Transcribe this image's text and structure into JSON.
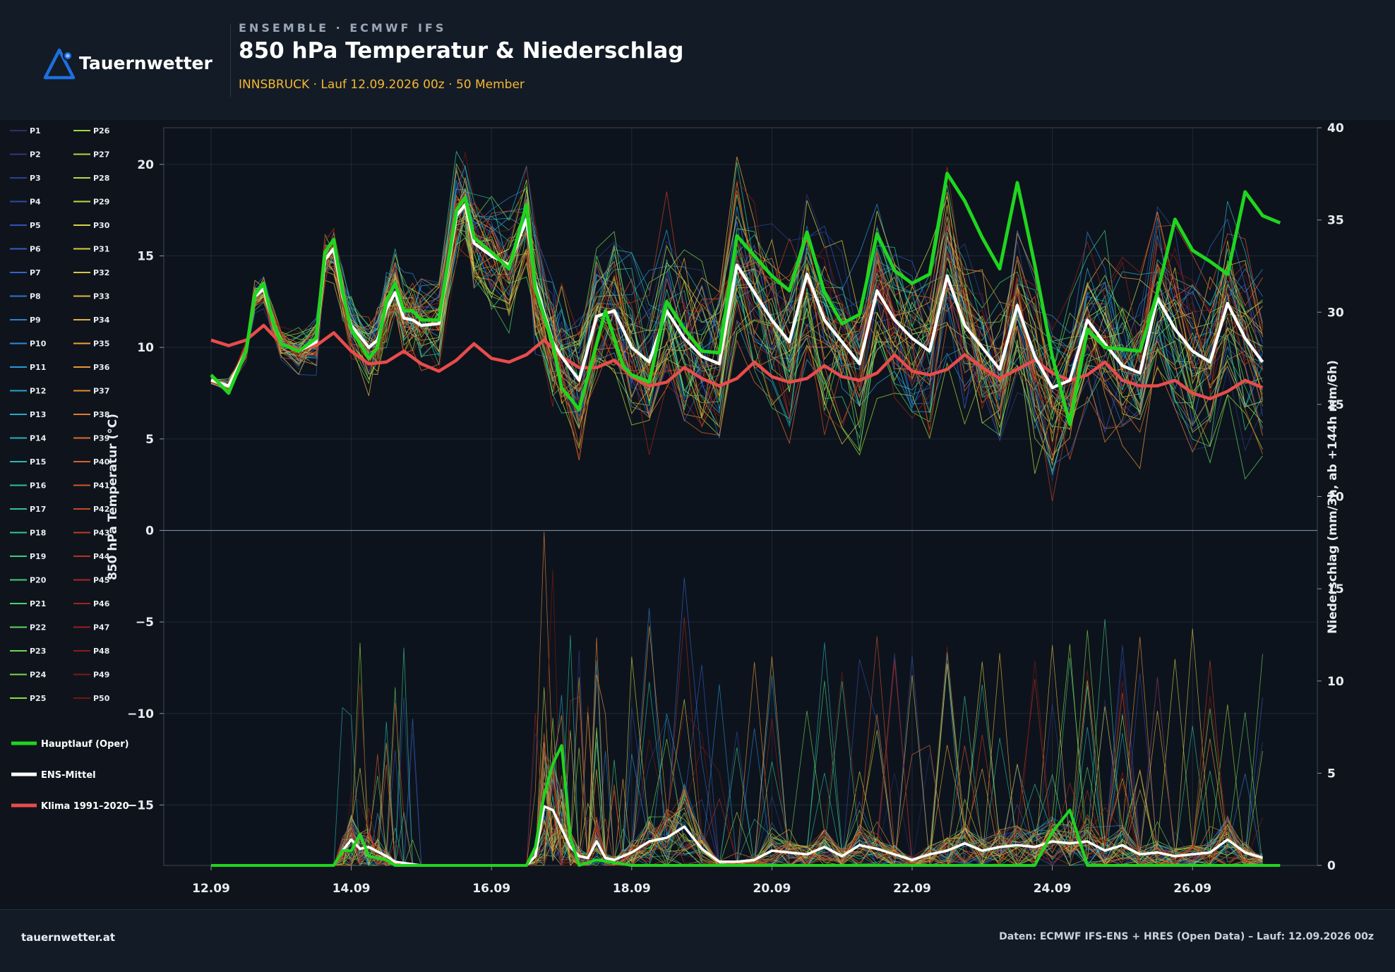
{
  "header": {
    "brand": "Tauernwetter",
    "kicker": "ENSEMBLE · ECMWF IFS",
    "title": "850 hPa Temperatur & Niederschlag",
    "subtitle": "INNSBRUCK · Lauf 12.09.2026 00z · 50 Member"
  },
  "footer": {
    "site": "tauernwetter.at",
    "source": "Daten: ECMWF IFS-ENS + HRES (Open Data) – Lauf: 12.09.2026 00z"
  },
  "colors": {
    "background": "#0f141c",
    "panel": "#131b26",
    "accent_brand": "#1e6fe0",
    "subtitle": "#f5b731",
    "oper": "#1fd61f",
    "mean": "#ffffff",
    "climate": "#e84c4c"
  },
  "icons": {
    "logo": "mountain-triangle-icon"
  },
  "chart_data": {
    "type": "line",
    "x_unit": "date",
    "x_range": [
      "2026-09-12",
      "2026-09-27"
    ],
    "x_ticks": [
      "12.09",
      "14.09",
      "16.09",
      "18.09",
      "20.09",
      "22.09",
      "24.09",
      "26.09"
    ],
    "x_tick_dates": [
      "2026-09-12",
      "2026-09-14",
      "2026-09-16",
      "2026-09-18",
      "2026-09-20",
      "2026-09-22",
      "2026-09-24",
      "2026-09-26"
    ],
    "ylabel": "850 hPa Temperatur (°C)",
    "ylim": [
      -18.3,
      22.0
    ],
    "y_ticks": [
      20,
      15,
      10,
      5,
      0,
      -5,
      -10,
      -15
    ],
    "y_tick_labels": [
      "20",
      "15",
      "10",
      "5",
      "0",
      "−5",
      "−10",
      "−15"
    ],
    "y2label": "Niederschlag (mm/3h, ab +144h mm/6h)",
    "y2lim": [
      0,
      40
    ],
    "y2_ticks": [
      0,
      5,
      10,
      15,
      20,
      25,
      30,
      35,
      40
    ],
    "y2_tick_labels": [
      "0",
      "5",
      "10",
      "15",
      "20",
      "25",
      "30",
      "35",
      "40"
    ],
    "grid": true,
    "legend_position": "left",
    "ensemble_members": [
      "P1",
      "P2",
      "P3",
      "P4",
      "P5",
      "P6",
      "P7",
      "P8",
      "P9",
      "P10",
      "P11",
      "P12",
      "P13",
      "P14",
      "P15",
      "P16",
      "P17",
      "P18",
      "P19",
      "P20",
      "P21",
      "P22",
      "P23",
      "P24",
      "P25",
      "P26",
      "P27",
      "P28",
      "P29",
      "P30",
      "P31",
      "P32",
      "P33",
      "P34",
      "P35",
      "P36",
      "P37",
      "P38",
      "P39",
      "P40",
      "P41",
      "P42",
      "P43",
      "P44",
      "P45",
      "P46",
      "P47",
      "P48",
      "P49",
      "P50"
    ],
    "series": [
      {
        "name": "Hauptlauf (Oper)",
        "temperature": [
          [
            0,
            8.5
          ],
          [
            0.25,
            7.5
          ],
          [
            0.5,
            9.8
          ],
          [
            0.625,
            12.9
          ],
          [
            0.75,
            13.5
          ],
          [
            0.875,
            11.5
          ],
          [
            1,
            10.2
          ],
          [
            1.25,
            9.8
          ],
          [
            1.5,
            10.5
          ],
          [
            1.625,
            15.2
          ],
          [
            1.75,
            15.9
          ],
          [
            1.875,
            13.0
          ],
          [
            2,
            11.0
          ],
          [
            2.25,
            9.4
          ],
          [
            2.375,
            10.0
          ],
          [
            2.5,
            12.5
          ],
          [
            2.625,
            13.5
          ],
          [
            2.75,
            12.0
          ],
          [
            2.875,
            12.0
          ],
          [
            3,
            11.5
          ],
          [
            3.25,
            11.5
          ],
          [
            3.5,
            17.5
          ],
          [
            3.625,
            18.2
          ],
          [
            3.75,
            16.0
          ],
          [
            4,
            15.2
          ],
          [
            4.25,
            14.3
          ],
          [
            4.5,
            17.8
          ],
          [
            4.625,
            13.2
          ],
          [
            4.875,
            10.2
          ],
          [
            5,
            7.8
          ],
          [
            5.25,
            6.6
          ],
          [
            5.5,
            10.2
          ],
          [
            5.625,
            12.0
          ],
          [
            5.75,
            10.5
          ],
          [
            5.875,
            9.0
          ],
          [
            6,
            8.5
          ],
          [
            6.25,
            8.1
          ],
          [
            6.5,
            12.5
          ],
          [
            6.75,
            11.0
          ],
          [
            7,
            9.8
          ],
          [
            7.25,
            9.7
          ],
          [
            7.5,
            16.1
          ],
          [
            7.75,
            15.0
          ],
          [
            8,
            13.9
          ],
          [
            8.25,
            13.1
          ],
          [
            8.5,
            16.3
          ],
          [
            8.75,
            13.0
          ],
          [
            9,
            11.3
          ],
          [
            9.25,
            11.8
          ],
          [
            9.5,
            16.2
          ],
          [
            9.75,
            14.2
          ],
          [
            10,
            13.5
          ],
          [
            10.25,
            14.0
          ],
          [
            10.5,
            19.5
          ],
          [
            10.75,
            18.0
          ],
          [
            11,
            16.0
          ],
          [
            11.25,
            14.3
          ],
          [
            11.5,
            19.0
          ],
          [
            11.75,
            14.5
          ],
          [
            12,
            9.5
          ],
          [
            12.25,
            5.8
          ],
          [
            12.5,
            11.0
          ],
          [
            12.75,
            10.0
          ],
          [
            13,
            9.9
          ],
          [
            13.25,
            9.8
          ],
          [
            13.5,
            13.0
          ],
          [
            13.75,
            17.0
          ],
          [
            14,
            15.3
          ],
          [
            14.25,
            14.7
          ],
          [
            14.5,
            14.0
          ],
          [
            14.75,
            18.5
          ],
          [
            15,
            17.2
          ],
          [
            15.25,
            16.8
          ]
        ],
        "precip": [
          [
            0,
            0
          ],
          [
            1.75,
            0
          ],
          [
            1.875,
            0.8
          ],
          [
            2,
            0.8
          ],
          [
            2.125,
            1.7
          ],
          [
            2.25,
            0.5
          ],
          [
            2.5,
            0.3
          ],
          [
            2.625,
            0
          ],
          [
            3,
            0
          ],
          [
            4.5,
            0
          ],
          [
            4.625,
            1.0
          ],
          [
            4.75,
            3.8
          ],
          [
            4.875,
            5.5
          ],
          [
            5,
            6.5
          ],
          [
            5.125,
            1.5
          ],
          [
            5.25,
            0
          ],
          [
            5.5,
            0.3
          ],
          [
            6,
            0
          ],
          [
            7,
            0
          ],
          [
            7.5,
            0
          ],
          [
            8,
            0
          ],
          [
            9,
            0
          ],
          [
            10,
            0
          ],
          [
            11,
            0
          ],
          [
            11.75,
            0
          ],
          [
            12,
            1.8
          ],
          [
            12.25,
            3.0
          ],
          [
            12.5,
            0
          ],
          [
            13,
            0
          ],
          [
            14,
            0
          ],
          [
            15,
            0
          ],
          [
            15.25,
            0
          ]
        ]
      },
      {
        "name": "ENS-Mittel",
        "temperature": [
          [
            0,
            8.2
          ],
          [
            0.25,
            7.9
          ],
          [
            0.5,
            9.8
          ],
          [
            0.625,
            12.8
          ],
          [
            0.75,
            13.2
          ],
          [
            0.875,
            11.5
          ],
          [
            1,
            10.2
          ],
          [
            1.25,
            9.8
          ],
          [
            1.5,
            10.3
          ],
          [
            1.625,
            14.8
          ],
          [
            1.75,
            15.4
          ],
          [
            1.875,
            12.8
          ],
          [
            2,
            11.2
          ],
          [
            2.25,
            10.0
          ],
          [
            2.375,
            10.4
          ],
          [
            2.5,
            12.1
          ],
          [
            2.625,
            13.0
          ],
          [
            2.75,
            11.6
          ],
          [
            2.875,
            11.5
          ],
          [
            3,
            11.2
          ],
          [
            3.25,
            11.3
          ],
          [
            3.5,
            17.2
          ],
          [
            3.625,
            17.8
          ],
          [
            3.75,
            15.7
          ],
          [
            4,
            15.0
          ],
          [
            4.25,
            14.5
          ],
          [
            4.5,
            17.0
          ],
          [
            4.625,
            13.5
          ],
          [
            4.875,
            10.3
          ],
          [
            5,
            9.5
          ],
          [
            5.25,
            8.2
          ],
          [
            5.5,
            11.7
          ],
          [
            5.75,
            12.0
          ],
          [
            6,
            10.0
          ],
          [
            6.25,
            9.2
          ],
          [
            6.5,
            12.0
          ],
          [
            6.75,
            10.5
          ],
          [
            7,
            9.5
          ],
          [
            7.25,
            9.1
          ],
          [
            7.5,
            14.5
          ],
          [
            7.75,
            13.0
          ],
          [
            8,
            11.5
          ],
          [
            8.25,
            10.3
          ],
          [
            8.5,
            14.0
          ],
          [
            8.75,
            11.5
          ],
          [
            9,
            10.3
          ],
          [
            9.25,
            9.1
          ],
          [
            9.5,
            13.1
          ],
          [
            9.75,
            11.5
          ],
          [
            10,
            10.5
          ],
          [
            10.25,
            9.8
          ],
          [
            10.5,
            13.9
          ],
          [
            10.75,
            11.2
          ],
          [
            11,
            10.0
          ],
          [
            11.25,
            8.8
          ],
          [
            11.5,
            12.3
          ],
          [
            11.75,
            9.5
          ],
          [
            12,
            7.8
          ],
          [
            12.25,
            8.2
          ],
          [
            12.5,
            11.5
          ],
          [
            12.75,
            10.2
          ],
          [
            13,
            9.0
          ],
          [
            13.25,
            8.6
          ],
          [
            13.5,
            12.7
          ],
          [
            13.75,
            11.0
          ],
          [
            14,
            9.8
          ],
          [
            14.25,
            9.2
          ],
          [
            14.5,
            12.4
          ],
          [
            14.75,
            10.5
          ],
          [
            15,
            9.2
          ]
        ],
        "precip": [
          [
            0,
            0
          ],
          [
            1.75,
            0
          ],
          [
            1.875,
            0.8
          ],
          [
            2,
            1.4
          ],
          [
            2.125,
            0.9
          ],
          [
            2.25,
            1.0
          ],
          [
            2.5,
            0.5
          ],
          [
            2.625,
            0.2
          ],
          [
            3,
            0
          ],
          [
            4.5,
            0
          ],
          [
            4.625,
            0.5
          ],
          [
            4.75,
            3.2
          ],
          [
            4.875,
            3.0
          ],
          [
            5,
            2.0
          ],
          [
            5.125,
            1.0
          ],
          [
            5.25,
            0.5
          ],
          [
            5.375,
            0.4
          ],
          [
            5.5,
            1.3
          ],
          [
            5.625,
            0.4
          ],
          [
            5.75,
            0.3
          ],
          [
            6,
            0.7
          ],
          [
            6.25,
            1.3
          ],
          [
            6.5,
            1.5
          ],
          [
            6.75,
            2.1
          ],
          [
            7,
            0.9
          ],
          [
            7.25,
            0.2
          ],
          [
            7.5,
            0.2
          ],
          [
            7.75,
            0.3
          ],
          [
            8,
            0.8
          ],
          [
            8.25,
            0.7
          ],
          [
            8.5,
            0.6
          ],
          [
            8.75,
            1.0
          ],
          [
            9,
            0.5
          ],
          [
            9.25,
            1.1
          ],
          [
            9.5,
            0.9
          ],
          [
            9.75,
            0.6
          ],
          [
            10,
            0.3
          ],
          [
            10.25,
            0.6
          ],
          [
            10.5,
            0.8
          ],
          [
            10.75,
            1.2
          ],
          [
            11,
            0.8
          ],
          [
            11.25,
            1.0
          ],
          [
            11.5,
            1.1
          ],
          [
            11.75,
            1.0
          ],
          [
            12,
            1.3
          ],
          [
            12.25,
            1.2
          ],
          [
            12.5,
            1.3
          ],
          [
            12.75,
            0.8
          ],
          [
            13,
            1.1
          ],
          [
            13.25,
            0.6
          ],
          [
            13.5,
            0.7
          ],
          [
            13.75,
            0.5
          ],
          [
            14,
            0.6
          ],
          [
            14.25,
            0.7
          ],
          [
            14.5,
            1.4
          ],
          [
            14.75,
            0.7
          ],
          [
            15,
            0.4
          ]
        ]
      },
      {
        "name": "Klima 1991–2020",
        "temperature": [
          [
            0,
            10.4
          ],
          [
            0.25,
            10.1
          ],
          [
            0.5,
            10.4
          ],
          [
            0.75,
            11.2
          ],
          [
            1,
            10.2
          ],
          [
            1.25,
            9.9
          ],
          [
            1.5,
            10.1
          ],
          [
            1.75,
            10.8
          ],
          [
            2,
            9.8
          ],
          [
            2.25,
            9.1
          ],
          [
            2.5,
            9.2
          ],
          [
            2.75,
            9.8
          ],
          [
            3,
            9.1
          ],
          [
            3.25,
            8.7
          ],
          [
            3.5,
            9.3
          ],
          [
            3.75,
            10.2
          ],
          [
            4,
            9.4
          ],
          [
            4.25,
            9.2
          ],
          [
            4.5,
            9.6
          ],
          [
            4.75,
            10.4
          ],
          [
            5,
            9.5
          ],
          [
            5.25,
            8.9
          ],
          [
            5.5,
            8.9
          ],
          [
            5.75,
            9.3
          ],
          [
            6,
            8.4
          ],
          [
            6.25,
            7.9
          ],
          [
            6.5,
            8.1
          ],
          [
            6.75,
            8.9
          ],
          [
            7,
            8.3
          ],
          [
            7.25,
            7.9
          ],
          [
            7.5,
            8.3
          ],
          [
            7.75,
            9.2
          ],
          [
            8,
            8.4
          ],
          [
            8.25,
            8.1
          ],
          [
            8.5,
            8.3
          ],
          [
            8.75,
            9.0
          ],
          [
            9,
            8.4
          ],
          [
            9.25,
            8.2
          ],
          [
            9.5,
            8.6
          ],
          [
            9.75,
            9.6
          ],
          [
            10,
            8.7
          ],
          [
            10.25,
            8.5
          ],
          [
            10.5,
            8.8
          ],
          [
            10.75,
            9.6
          ],
          [
            11,
            8.9
          ],
          [
            11.25,
            8.3
          ],
          [
            11.5,
            8.8
          ],
          [
            11.75,
            9.3
          ],
          [
            12,
            8.6
          ],
          [
            12.25,
            8.2
          ],
          [
            12.5,
            8.5
          ],
          [
            12.75,
            9.2
          ],
          [
            13,
            8.2
          ],
          [
            13.25,
            7.9
          ],
          [
            13.5,
            7.9
          ],
          [
            13.75,
            8.2
          ],
          [
            14,
            7.5
          ],
          [
            14.25,
            7.2
          ],
          [
            14.5,
            7.6
          ],
          [
            14.75,
            8.2
          ],
          [
            15,
            7.8
          ]
        ]
      }
    ]
  }
}
